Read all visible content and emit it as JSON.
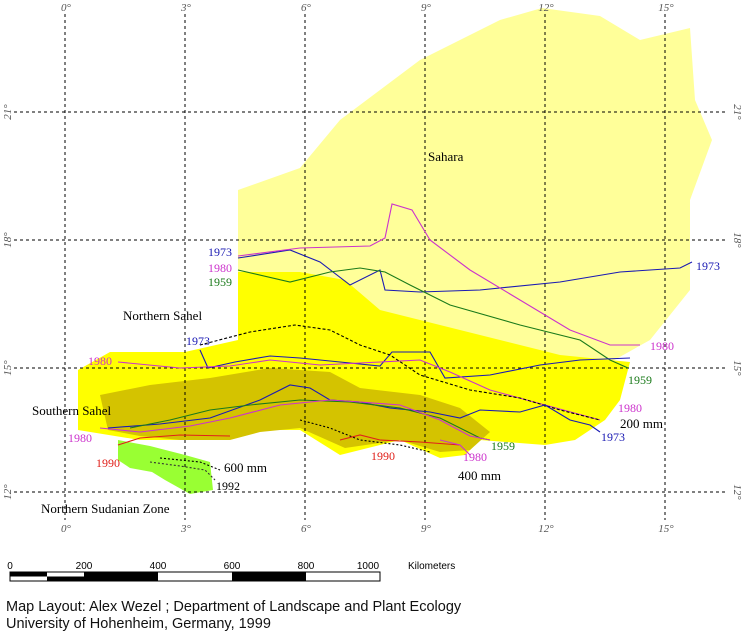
{
  "map": {
    "longitude_labels": [
      "0°",
      "3°",
      "6°",
      "9°",
      "12°",
      "15°"
    ],
    "latitude_labels": [
      "21°",
      "18°",
      "15°",
      "12°"
    ],
    "regions": {
      "sahara": "Sahara",
      "northern_sahel": "Northern Sahel",
      "southern_sahel": "Southern Sahel",
      "northern_sudanian": "Northern Sudanian Zone"
    },
    "isohyets": {
      "mm200": "200 mm",
      "mm400": "400 mm",
      "mm600": "600 mm"
    },
    "years": {
      "y1973": "1973",
      "y1980": "1980",
      "y1959": "1959",
      "y1990": "1990",
      "y1992": "1992"
    },
    "colors": {
      "sahara": "#ffff99",
      "northern_sahel": "#ffff00",
      "southern_sahel": "#d4c300",
      "sudanian": "#99ff33",
      "line_1973": "#1a1ab3",
      "line_1980": "#cc33cc",
      "line_1959": "#1a7a1a",
      "line_1990": "#e0201a",
      "line_1992": "#333333"
    }
  },
  "scalebar": {
    "ticks": [
      "0",
      "200",
      "400",
      "600",
      "800",
      "1000"
    ],
    "unit": "Kilometers"
  },
  "credits": {
    "line1": "Map Layout: Alex Wezel ; Department of Landscape and Plant Ecology",
    "line2": "University of Hohenheim, Germany, 1999"
  }
}
